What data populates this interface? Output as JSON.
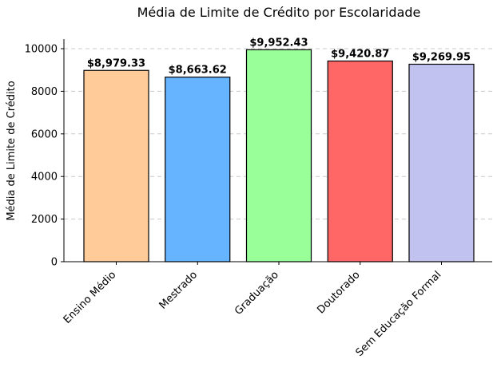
{
  "chart_data": {
    "type": "bar",
    "title": "Média de Limite de Crédito por Escolaridade",
    "xlabel": "",
    "ylabel": "Média de Limite de Crédito",
    "categories": [
      "Ensino Médio",
      "Mestrado",
      "Graduação",
      "Doutorado",
      "Sem Educação Formal"
    ],
    "values": [
      8979.33,
      8663.62,
      9952.43,
      9420.87,
      9269.95
    ],
    "value_labels": [
      "$8,979.33",
      "$8,663.62",
      "$9,952.43",
      "$9,420.87",
      "$9,269.95"
    ],
    "colors": [
      "#ffcc99",
      "#66b3ff",
      "#99ff99",
      "#ff6666",
      "#c2c2f0"
    ],
    "ylim": [
      0,
      10450
    ],
    "yticks": [
      0,
      2000,
      4000,
      6000,
      8000,
      10000
    ],
    "grid": true,
    "grid_axis": "y"
  }
}
